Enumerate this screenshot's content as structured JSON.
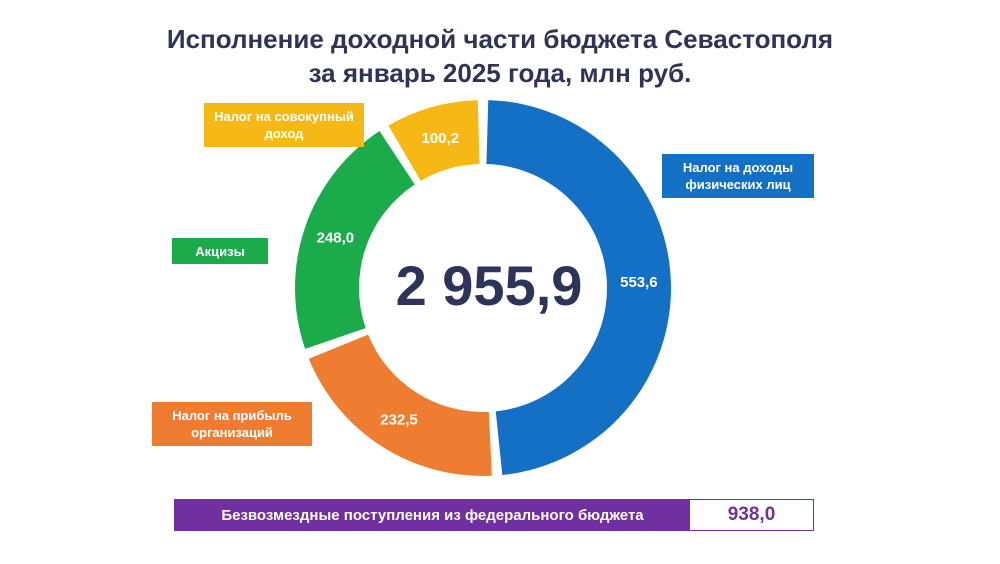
{
  "title_line1": "Исполнение доходной части бюджета Севастополя",
  "title_line2": "за январь 2025 года, млн руб.",
  "chart_data": {
    "type": "pie",
    "variant": "donut",
    "total_label": "2 955,9",
    "slices": [
      {
        "label": "Налог на доходы физических лиц",
        "value": 553.6,
        "value_label": "553,6",
        "color": "#1470c5"
      },
      {
        "label": "Налог на прибыль организаций",
        "value": 232.5,
        "value_label": "232,5",
        "color": "#ee7d32"
      },
      {
        "label": "Акцизы",
        "value": 248.0,
        "value_label": "248,0",
        "color": "#1bab4a"
      },
      {
        "label": "Налог на совокупный доход",
        "value": 100.2,
        "value_label": "100,2",
        "color": "#f6b815"
      }
    ]
  },
  "legend": {
    "yellow": "Налог на совокупный доход",
    "blue": "Налог на доходы физических лиц",
    "green": "Акцизы",
    "orange": "Налог на прибыль организаций"
  },
  "footer": {
    "label": "Безвозмездные поступления из федерального бюджета",
    "value": "938,0"
  }
}
